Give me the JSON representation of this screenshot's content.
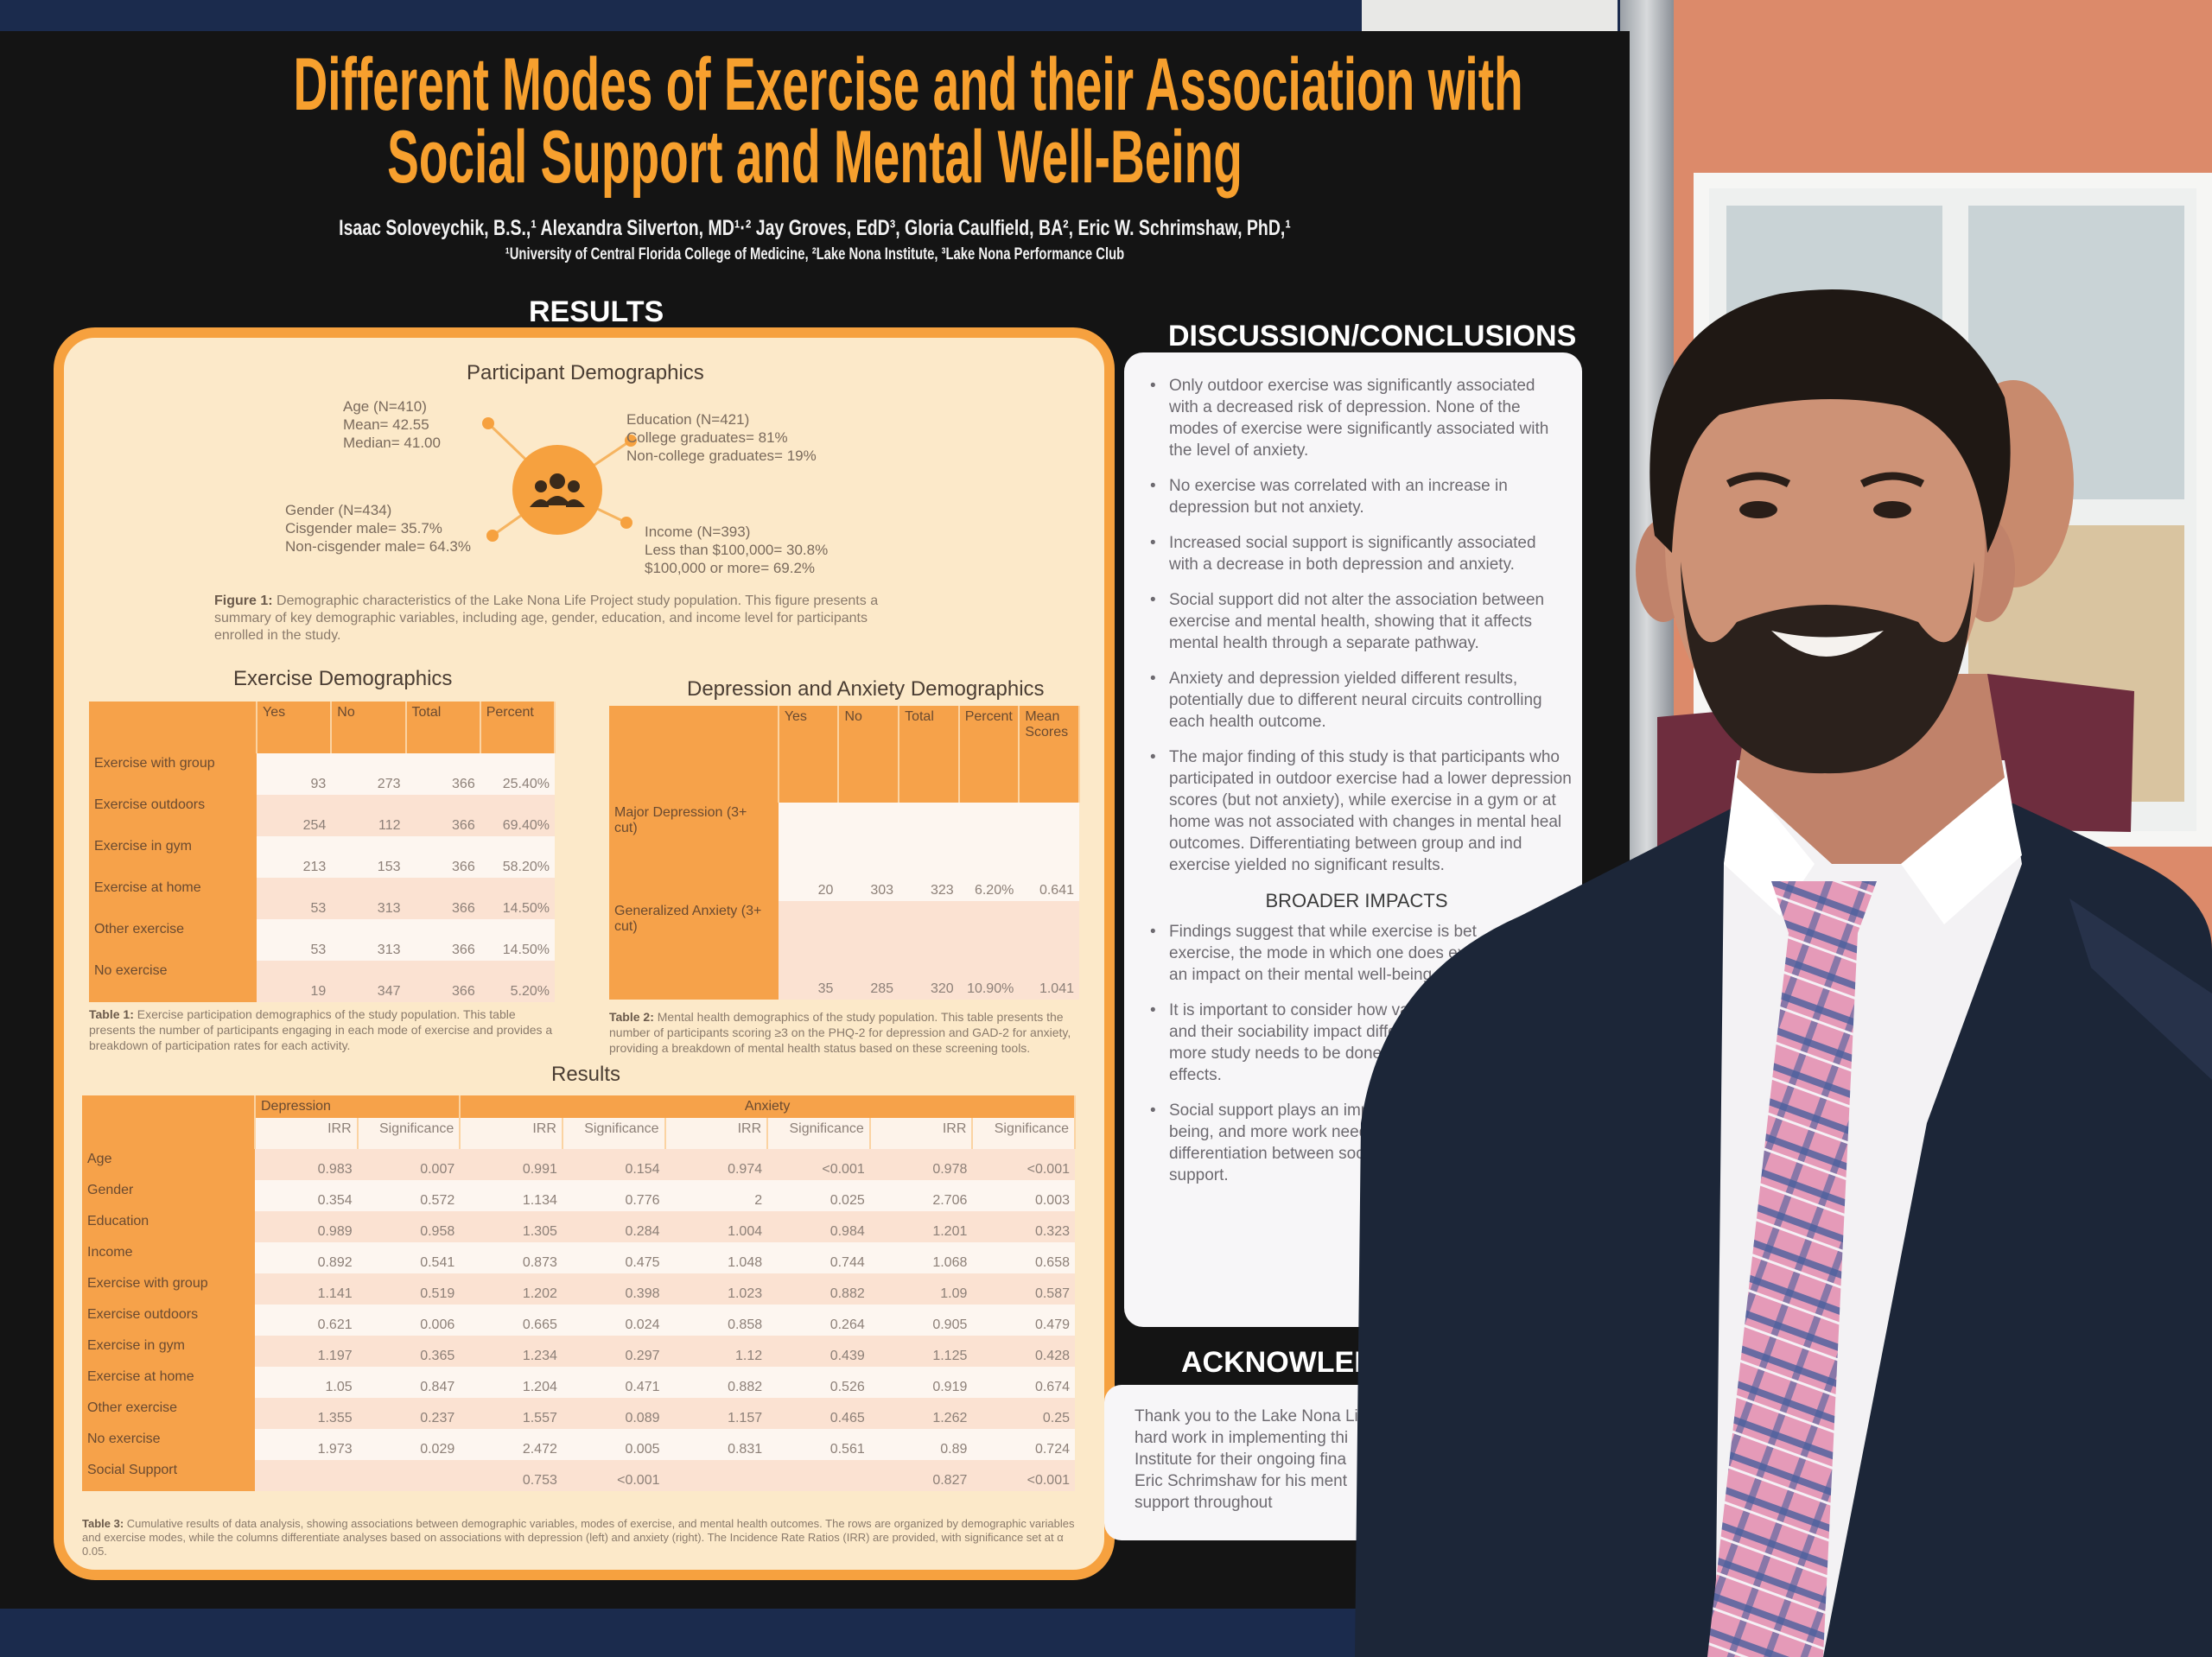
{
  "poster": {
    "title_lines": [
      "Different Modes of Exercise and their Association with",
      "Social Support and Mental Well-Being"
    ],
    "authors": "Isaac Soloveychik, B.S.,¹ Alexandra Silverton, MD¹·² Jay Groves, EdD³, Gloria Caulfield, BA², Eric W. Schrimshaw, PhD,¹",
    "affiliations": "¹University of Central Florida College of Medicine, ²Lake Nona Institute, ³Lake Nona Performance Club",
    "results_heading": "RESULTS",
    "participant_demographics": {
      "title": "Participant Demographics",
      "age": [
        "Age (N=410)",
        "Mean= 42.55",
        "Median= 41.00"
      ],
      "education": [
        "Education (N=421)",
        "College graduates= 81%",
        "Non-college graduates= 19%"
      ],
      "gender": [
        "Gender (N=434)",
        "Cisgender male= 35.7%",
        "Non-cisgender male= 64.3%"
      ],
      "income": [
        "Income (N=393)",
        "Less than $100,000= 30.8%",
        "$100,000 or more= 69.2%"
      ],
      "icon": "people-group-icon",
      "caption_label": "Figure 1:",
      "caption": " Demographic characteristics of the Lake Nona Life Project study population. This figure presents a summary of key demographic variables, including age, gender, education, and income level for participants enrolled in the study."
    },
    "exercise_table": {
      "title": "Exercise Demographics",
      "columns": [
        "",
        "Yes",
        "No",
        "Total",
        "Percent"
      ],
      "rows": [
        [
          "Exercise with group",
          "93",
          "273",
          "366",
          "25.40%"
        ],
        [
          "Exercise outdoors",
          "254",
          "112",
          "366",
          "69.40%"
        ],
        [
          "Exercise in gym",
          "213",
          "153",
          "366",
          "58.20%"
        ],
        [
          "Exercise at home",
          "53",
          "313",
          "366",
          "14.50%"
        ],
        [
          "Other exercise",
          "53",
          "313",
          "366",
          "14.50%"
        ],
        [
          "No exercise",
          "19",
          "347",
          "366",
          "5.20%"
        ]
      ],
      "caption_label": "Table 1:",
      "caption": " Exercise participation demographics of the study population. This table presents the number of participants engaging in each mode of exercise and provides a breakdown of participation rates for each activity."
    },
    "mental_table": {
      "title": "Depression and Anxiety Demographics",
      "columns": [
        "",
        "Yes",
        "No",
        "Total",
        "Percent",
        "Mean Scores"
      ],
      "rows": [
        [
          "Major Depression (3+ cut)",
          "20",
          "303",
          "323",
          "6.20%",
          "0.641"
        ],
        [
          "Generalized Anxiety (3+ cut)",
          "35",
          "285",
          "320",
          "10.90%",
          "1.041"
        ]
      ],
      "caption_label": "Table 2:",
      "caption": " Mental health demographics of the study population. This table presents the number of participants scoring ≥3 on the PHQ-2 for depression and GAD-2 for anxiety, providing a breakdown of mental health status based on these screening tools."
    },
    "results_table": {
      "title": "Results",
      "group_headers": [
        "Depression",
        "Anxiety"
      ],
      "columns": [
        "",
        "IRR",
        "Significance",
        "IRR",
        "Significance",
        "IRR",
        "Significance",
        "IRR",
        "Significance"
      ],
      "rows": [
        [
          "Age",
          "0.983",
          "0.007",
          "0.991",
          "0.154",
          "0.974",
          "<0.001",
          "0.978",
          "<0.001"
        ],
        [
          "Gender",
          "0.354",
          "0.572",
          "1.134",
          "0.776",
          "2",
          "0.025",
          "2.706",
          "0.003"
        ],
        [
          "Education",
          "0.989",
          "0.958",
          "1.305",
          "0.284",
          "1.004",
          "0.984",
          "1.201",
          "0.323"
        ],
        [
          "Income",
          "0.892",
          "0.541",
          "0.873",
          "0.475",
          "1.048",
          "0.744",
          "1.068",
          "0.658"
        ],
        [
          "Exercise with group",
          "1.141",
          "0.519",
          "1.202",
          "0.398",
          "1.023",
          "0.882",
          "1.09",
          "0.587"
        ],
        [
          "Exercise outdoors",
          "0.621",
          "0.006",
          "0.665",
          "0.024",
          "0.858",
          "0.264",
          "0.905",
          "0.479"
        ],
        [
          "Exercise in gym",
          "1.197",
          "0.365",
          "1.234",
          "0.297",
          "1.12",
          "0.439",
          "1.125",
          "0.428"
        ],
        [
          "Exercise at home",
          "1.05",
          "0.847",
          "1.204",
          "0.471",
          "0.882",
          "0.526",
          "0.919",
          "0.674"
        ],
        [
          "Other exercise",
          "1.355",
          "0.237",
          "1.557",
          "0.089",
          "1.157",
          "0.465",
          "1.262",
          "0.25"
        ],
        [
          "No exercise",
          "1.973",
          "0.029",
          "2.472",
          "0.005",
          "0.831",
          "0.561",
          "0.89",
          "0.724"
        ],
        [
          "Social Support",
          "",
          "",
          "0.753",
          "<0.001",
          "",
          "",
          "0.827",
          "<0.001"
        ]
      ],
      "caption_label": "Table 3:",
      "caption": " Cumulative results of data analysis, showing associations between demographic variables, modes of exercise, and mental health outcomes. The rows are organized by demographic variables and exercise modes, while the columns differentiate analyses based on associations with depression (left) and anxiety (right). The Incidence Rate Ratios (IRR) are provided, with significance set at α 0.05."
    },
    "discussion": {
      "heading": "DISCUSSION/CONCLUSIONS",
      "bullets": [
        "Only outdoor exercise was significantly associated with a decreased risk of depression. None of the modes of exercise were significantly associated with the level of anxiety.",
        "No exercise was correlated with an increase in depression but not anxiety.",
        "Increased social support is significantly associated with a decrease in both depression and anxiety.",
        "Social support did not alter the association between exercise and mental health, showing that it affects mental health through a separate pathway.",
        "Anxiety and depression yielded different results, potentially due to different neural circuits controlling each health outcome."
      ],
      "last_bullet_lines": [
        "The major finding of this study is that participants who",
        "participated in outdoor exercise had a lower depression",
        "scores (but not anxiety), while exercise in a gym or at",
        "home was not associated with changes in mental heal",
        "outcomes. Differentiating between group and ind",
        "exercise yielded no significant results."
      ],
      "broader_heading": "BROADER IMPACTS",
      "broader_bullets": [
        [
          "Findings suggest that while exercise is bet",
          "exercise, the mode in which one does exe",
          "an impact on their mental well-being."
        ],
        [
          "It is important to consider how variou",
          "and their sociability impact different",
          "more study needs to be done to diffe",
          "effects."
        ],
        [
          "Social support plays an important",
          "being, and more work needs to be",
          "differentiation between social ex",
          "support."
        ]
      ]
    },
    "acknowledgements": {
      "heading": "ACKNOWLEDG",
      "lines": [
        "Thank you to the Lake Nona Lif",
        "hard work in implementing thi",
        "Institute for their ongoing fina",
        "Eric Schrimshaw for his ment",
        "support throughout"
      ]
    }
  },
  "colors": {
    "title_orange": "#f7a02e",
    "panel_border": "#f6a13f",
    "table_header": "#f6a24a",
    "poster_bg": "#141414",
    "suit": "#1c2638",
    "wall": "#dc8a6a"
  }
}
